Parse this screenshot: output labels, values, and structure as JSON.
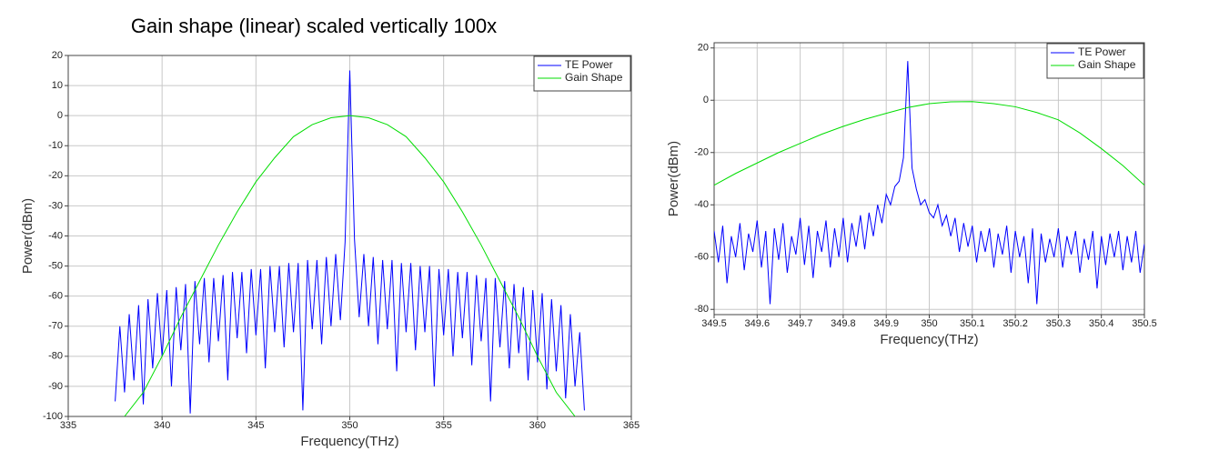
{
  "chart_data": [
    {
      "type": "line",
      "title": "Gain shape (linear) scaled vertically 100x",
      "xlabel": "Frequency(THz)",
      "ylabel": "Power(dBm)",
      "xlim": [
        335,
        365
      ],
      "xticks": [
        335,
        340,
        345,
        350,
        355,
        360,
        365
      ],
      "ylim": [
        -100,
        20
      ],
      "yticks": [
        20,
        10,
        0,
        -10,
        -20,
        -30,
        -40,
        -50,
        -60,
        -70,
        -80,
        -90,
        -100
      ],
      "grid": true,
      "legend": "upper right",
      "series": [
        {
          "name": "TE Power",
          "color": "#0000ff",
          "x": [
            337.5,
            337.75,
            338,
            338.25,
            338.5,
            338.75,
            339,
            339.25,
            339.5,
            339.75,
            340,
            340.25,
            340.5,
            340.75,
            341,
            341.25,
            341.5,
            341.75,
            342,
            342.25,
            342.5,
            342.75,
            343,
            343.25,
            343.5,
            343.75,
            344,
            344.25,
            344.5,
            344.75,
            345,
            345.25,
            345.5,
            345.75,
            346,
            346.25,
            346.5,
            346.75,
            347,
            347.25,
            347.5,
            347.75,
            348,
            348.25,
            348.5,
            348.75,
            349,
            349.25,
            349.5,
            349.75,
            350,
            350.25,
            350.5,
            350.75,
            351,
            351.25,
            351.5,
            351.75,
            352,
            352.25,
            352.5,
            352.75,
            353,
            353.25,
            353.5,
            353.75,
            354,
            354.25,
            354.5,
            354.75,
            355,
            355.25,
            355.5,
            355.75,
            356,
            356.25,
            356.5,
            356.75,
            357,
            357.25,
            357.5,
            357.75,
            358,
            358.25,
            358.5,
            358.75,
            359,
            359.25,
            359.5,
            359.75,
            360,
            360.25,
            360.5,
            360.75,
            361,
            361.25,
            361.5,
            361.75,
            362,
            362.25,
            362.5
          ],
          "values": [
            -95,
            -70,
            -92,
            -66,
            -88,
            -63,
            -96,
            -61,
            -84,
            -59,
            -80,
            -58,
            -90,
            -57,
            -78,
            -56,
            -99,
            -55,
            -76,
            -54,
            -82,
            -54,
            -75,
            -53,
            -88,
            -52,
            -74,
            -52,
            -79,
            -51,
            -73,
            -51,
            -84,
            -50,
            -72,
            -50,
            -77,
            -49,
            -72,
            -49,
            -98,
            -48,
            -71,
            -48,
            -76,
            -47,
            -70,
            -46,
            -68,
            -42,
            15,
            -41,
            -67,
            -46,
            -70,
            -47,
            -76,
            -48,
            -71,
            -48,
            -85,
            -49,
            -72,
            -49,
            -78,
            -50,
            -72,
            -50,
            -90,
            -51,
            -73,
            -51,
            -80,
            -52,
            -74,
            -52,
            -83,
            -53,
            -75,
            -54,
            -95,
            -54,
            -77,
            -55,
            -84,
            -56,
            -79,
            -57,
            -88,
            -58,
            -82,
            -59,
            -91,
            -61,
            -85,
            -63,
            -94,
            -66,
            -90,
            -72,
            -98
          ]
        },
        {
          "name": "Gain Shape",
          "color": "#00dd00",
          "x": [
            338,
            339,
            340,
            341,
            342,
            343,
            344,
            345,
            346,
            347,
            348,
            349,
            350,
            351,
            352,
            353,
            354,
            355,
            356,
            357,
            358,
            359,
            360,
            361,
            362
          ],
          "values": [
            -100,
            -92,
            -80,
            -67,
            -55,
            -43,
            -32,
            -22,
            -14,
            -7,
            -3,
            -0.7,
            0,
            -0.7,
            -3,
            -7,
            -14,
            -22,
            -32,
            -43,
            -55,
            -67,
            -80,
            -92,
            -100
          ]
        }
      ]
    },
    {
      "type": "line",
      "xlabel": "Frequency(THz)",
      "ylabel": "Power(dBm)",
      "xlim": [
        349.5,
        350.5
      ],
      "xticks": [
        349.5,
        349.6,
        349.7,
        349.8,
        349.9,
        350,
        350.1,
        350.2,
        350.3,
        350.4,
        350.5
      ],
      "ylim": [
        -82,
        22
      ],
      "yticks": [
        20,
        0,
        -20,
        -40,
        -60,
        -80
      ],
      "grid": true,
      "legend": "upper right",
      "series": [
        {
          "name": "TE Power",
          "color": "#0000ff",
          "x": [
            349.5,
            349.51,
            349.52,
            349.53,
            349.54,
            349.55,
            349.56,
            349.57,
            349.58,
            349.59,
            349.6,
            349.61,
            349.62,
            349.63,
            349.64,
            349.65,
            349.66,
            349.67,
            349.68,
            349.69,
            349.7,
            349.71,
            349.72,
            349.73,
            349.74,
            349.75,
            349.76,
            349.77,
            349.78,
            349.79,
            349.8,
            349.81,
            349.82,
            349.83,
            349.84,
            349.85,
            349.86,
            349.87,
            349.88,
            349.89,
            349.9,
            349.91,
            349.92,
            349.93,
            349.94,
            349.95,
            349.96,
            349.97,
            349.98,
            349.99,
            350,
            350.01,
            350.02,
            350.03,
            350.04,
            350.05,
            350.06,
            350.07,
            350.08,
            350.09,
            350.1,
            350.11,
            350.12,
            350.13,
            350.14,
            350.15,
            350.16,
            350.17,
            350.18,
            350.19,
            350.2,
            350.21,
            350.22,
            350.23,
            350.24,
            350.25,
            350.26,
            350.27,
            350.28,
            350.29,
            350.3,
            350.31,
            350.32,
            350.33,
            350.34,
            350.35,
            350.36,
            350.37,
            350.38,
            350.39,
            350.4,
            350.41,
            350.42,
            350.43,
            350.44,
            350.45,
            350.46,
            350.47,
            350.48,
            350.49,
            350.5
          ],
          "values": [
            -50,
            -62,
            -48,
            -70,
            -52,
            -60,
            -47,
            -65,
            -51,
            -58,
            -46,
            -64,
            -50,
            -78,
            -49,
            -61,
            -47,
            -66,
            -52,
            -59,
            -45,
            -63,
            -48,
            -68,
            -50,
            -58,
            -46,
            -64,
            -49,
            -60,
            -45,
            -62,
            -47,
            -56,
            -44,
            -57,
            -43,
            -52,
            -40,
            -47,
            -36,
            -40,
            -33,
            -31,
            -22,
            15,
            -26,
            -34,
            -40,
            -38,
            -43,
            -45,
            -40,
            -48,
            -44,
            -52,
            -45,
            -58,
            -47,
            -56,
            -48,
            -62,
            -50,
            -58,
            -49,
            -64,
            -51,
            -59,
            -48,
            -66,
            -50,
            -60,
            -52,
            -70,
            -49,
            -78,
            -51,
            -62,
            -53,
            -60,
            -49,
            -64,
            -52,
            -59,
            -50,
            -66,
            -53,
            -61,
            -50,
            -72,
            -52,
            -63,
            -51,
            -60,
            -50,
            -65,
            -52,
            -62,
            -50,
            -66,
            -55
          ]
        },
        {
          "name": "Gain Shape",
          "color": "#00dd00",
          "x": [
            349.5,
            349.55,
            349.6,
            349.65,
            349.7,
            349.75,
            349.8,
            349.85,
            349.9,
            349.95,
            350,
            350.05,
            350.1,
            350.15,
            350.2,
            350.25,
            350.3,
            350.35,
            350.4,
            350.45,
            350.5
          ],
          "values": [
            -32.5,
            -28,
            -24,
            -20,
            -16.5,
            -13,
            -10,
            -7.3,
            -5,
            -2.8,
            -1.3,
            -0.6,
            -0.5,
            -1.3,
            -2.5,
            -4.7,
            -7.5,
            -12.5,
            -18.5,
            -25,
            -32.5
          ]
        }
      ]
    }
  ]
}
